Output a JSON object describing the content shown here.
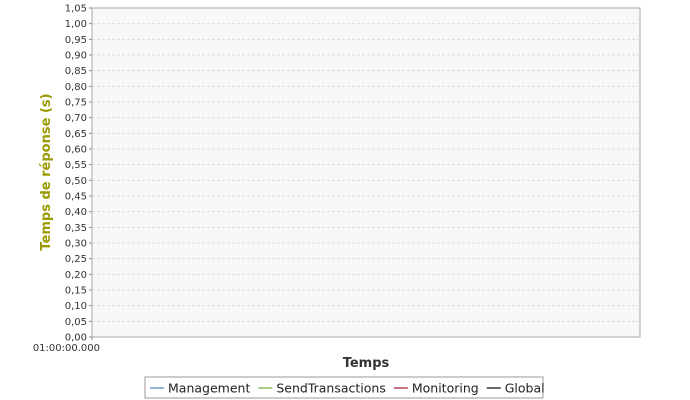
{
  "chart_data": {
    "type": "line",
    "title": "",
    "xlabel": "Temps",
    "ylabel": "Temps de réponse (s)",
    "ylim": [
      0,
      1.05
    ],
    "y_ticks": [
      "0,00",
      "0,05",
      "0,10",
      "0,15",
      "0,20",
      "0,25",
      "0,30",
      "0,35",
      "0,40",
      "0,45",
      "0,50",
      "0,55",
      "0,60",
      "0,65",
      "0,70",
      "0,75",
      "0,80",
      "0,85",
      "0,90",
      "0,95",
      "1,00",
      "1,05"
    ],
    "x_ticks": [
      "01:00:00.000"
    ],
    "grid": true,
    "legend_position": "bottom",
    "series": [
      {
        "name": "Management",
        "color": "#4f81bd",
        "values": []
      },
      {
        "name": "SendTransactions",
        "color": "#70b030",
        "values": []
      },
      {
        "name": "Monitoring",
        "color": "#a01030",
        "values": []
      },
      {
        "name": "Global",
        "color": "#000000",
        "values": []
      }
    ]
  }
}
